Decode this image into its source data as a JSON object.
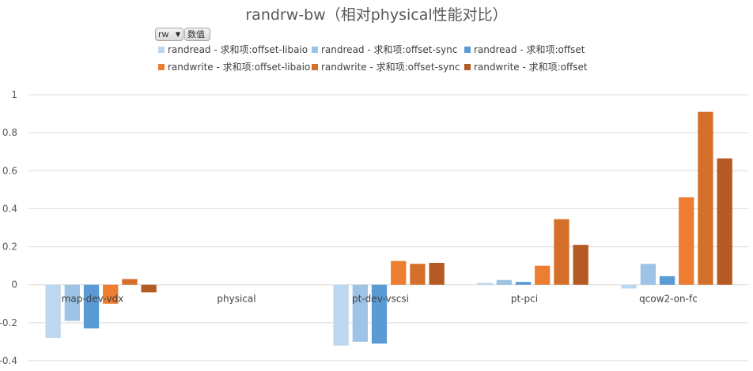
{
  "title": "randrw-bw（相对physical性能对比）",
  "pivot": {
    "field_button": "rw",
    "value_button": "数值"
  },
  "colors": {
    "grid": "#d9d9d9",
    "series": [
      "#bdd7ee",
      "#9dc3e6",
      "#5b9bd5",
      "#ed7d31",
      "#d5702b",
      "#b55a22"
    ]
  },
  "chart_data": {
    "type": "bar",
    "categories": [
      "map-dev-vdx",
      "physical",
      "pt-dev-vscsi",
      "pt-pci",
      "qcow2-on-fc"
    ],
    "ylim": [
      -0.4,
      1
    ],
    "yticks": [
      -0.4,
      -0.2,
      0,
      0.2,
      0.4,
      0.6,
      0.8,
      1
    ],
    "ytick_labels": [
      "-0.4",
      "-0.2",
      "0",
      "0.2",
      "0.4",
      "0.6",
      "0.8",
      "1"
    ],
    "grid": true,
    "legend_position": "top",
    "series": [
      {
        "name": "randread - 求和项:offset-libaio",
        "values": [
          -0.28,
          0,
          -0.32,
          0.01,
          -0.02
        ]
      },
      {
        "name": "randread - 求和项:offset-sync",
        "values": [
          -0.19,
          0,
          -0.3,
          0.025,
          0.11
        ]
      },
      {
        "name": "randread - 求和项:offset",
        "values": [
          -0.23,
          0,
          -0.31,
          0.015,
          0.045
        ]
      },
      {
        "name": "randwrite - 求和项:offset-libaio",
        "values": [
          -0.1,
          0,
          0.125,
          0.1,
          0.46
        ]
      },
      {
        "name": "randwrite - 求和项:offset-sync",
        "values": [
          0.03,
          0,
          0.11,
          0.345,
          0.91
        ]
      },
      {
        "name": "randwrite - 求和项:offset",
        "values": [
          -0.04,
          0,
          0.115,
          0.21,
          0.665
        ]
      }
    ]
  }
}
